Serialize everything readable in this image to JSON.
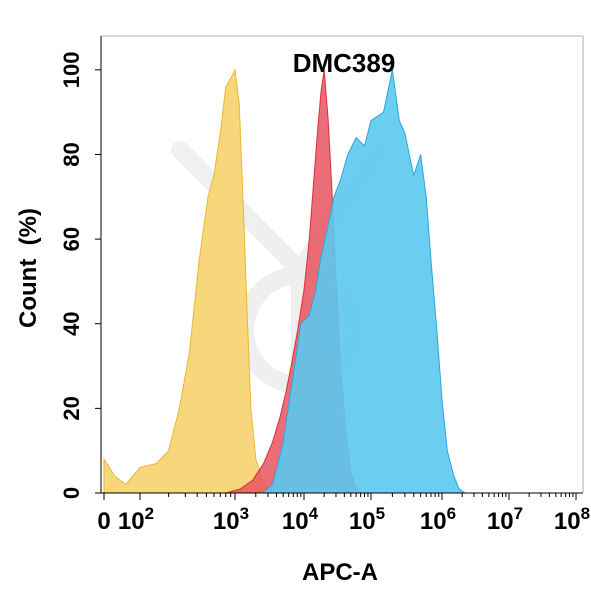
{
  "chart_data": {
    "type": "area",
    "title": "DMC389",
    "xlabel": "APC-A",
    "ylabel": "Count  (%)",
    "y_ticks": [
      "0",
      "20",
      "40",
      "60",
      "80",
      "100"
    ],
    "y_tick_values": [
      0,
      20,
      40,
      60,
      80,
      100
    ],
    "x_ticks": [
      {
        "base": "0",
        "exp": "",
        "value": 0
      },
      {
        "base": "10",
        "exp": "2",
        "value": 100
      },
      {
        "base": "10",
        "exp": "3",
        "value": 1000
      },
      {
        "base": "10",
        "exp": "4",
        "value": 10000
      },
      {
        "base": "10",
        "exp": "5",
        "value": 100000
      },
      {
        "base": "10",
        "exp": "6",
        "value": 1000000
      },
      {
        "base": "10",
        "exp": "7",
        "value": 10000000
      },
      {
        "base": "10",
        "exp": "8",
        "value": 100000000
      }
    ],
    "x_scale": "biexponential",
    "ylim": [
      0,
      108
    ],
    "grid": false,
    "series": [
      {
        "color": "#f7d26e",
        "stroke": "#e8b830",
        "points": [
          [
            0,
            8
          ],
          [
            30,
            4
          ],
          [
            60,
            2
          ],
          [
            100,
            6
          ],
          [
            150,
            7
          ],
          [
            200,
            10
          ],
          [
            260,
            20
          ],
          [
            330,
            33
          ],
          [
            420,
            55
          ],
          [
            520,
            70
          ],
          [
            600,
            75
          ],
          [
            700,
            85
          ],
          [
            800,
            96
          ],
          [
            900,
            98
          ],
          [
            1000,
            100
          ],
          [
            1150,
            92
          ],
          [
            1300,
            70
          ],
          [
            1500,
            42
          ],
          [
            1700,
            20
          ],
          [
            2000,
            8
          ],
          [
            2500,
            3
          ],
          [
            3000,
            1
          ],
          [
            3500,
            0
          ]
        ]
      },
      {
        "color": "#e8535f",
        "stroke": "#d9303d",
        "points": [
          [
            800,
            0
          ],
          [
            1200,
            1
          ],
          [
            1800,
            3
          ],
          [
            2600,
            7
          ],
          [
            3500,
            12
          ],
          [
            4500,
            18
          ],
          [
            5500,
            24
          ],
          [
            6500,
            30
          ],
          [
            8000,
            38
          ],
          [
            10000,
            48
          ],
          [
            12000,
            60
          ],
          [
            14000,
            74
          ],
          [
            16000,
            86
          ],
          [
            18000,
            95
          ],
          [
            20000,
            100
          ],
          [
            23000,
            88
          ],
          [
            26000,
            72
          ],
          [
            30000,
            50
          ],
          [
            35000,
            30
          ],
          [
            42000,
            14
          ],
          [
            50000,
            5
          ],
          [
            60000,
            1
          ],
          [
            70000,
            0
          ]
        ]
      },
      {
        "color": "#5bc8ee",
        "stroke": "#2ca6d6",
        "points": [
          [
            2500,
            0
          ],
          [
            3500,
            2
          ],
          [
            5000,
            12
          ],
          [
            7000,
            28
          ],
          [
            9000,
            40
          ],
          [
            12000,
            42
          ],
          [
            15000,
            48
          ],
          [
            18000,
            56
          ],
          [
            22000,
            62
          ],
          [
            28000,
            70
          ],
          [
            35000,
            74
          ],
          [
            45000,
            80
          ],
          [
            60000,
            84
          ],
          [
            80000,
            82
          ],
          [
            100000,
            88
          ],
          [
            150000,
            90
          ],
          [
            200000,
            100
          ],
          [
            250000,
            88
          ],
          [
            300000,
            85
          ],
          [
            400000,
            75
          ],
          [
            500000,
            80
          ],
          [
            600000,
            70
          ],
          [
            700000,
            55
          ],
          [
            850000,
            38
          ],
          [
            1000000,
            22
          ],
          [
            1200000,
            10
          ],
          [
            1500000,
            4
          ],
          [
            1800000,
            1
          ],
          [
            2200000,
            0
          ]
        ]
      }
    ]
  }
}
